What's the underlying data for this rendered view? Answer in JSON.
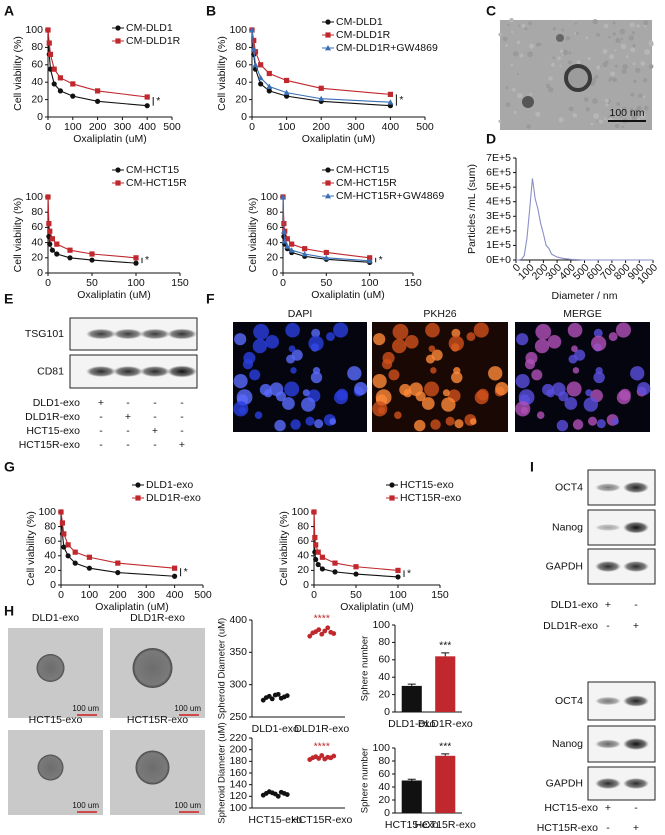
{
  "panel_labels": [
    "A",
    "B",
    "C",
    "D",
    "E",
    "F",
    "G",
    "H",
    "I"
  ],
  "panel_c": {
    "scale": "100 nm"
  },
  "panel_e": {
    "bands": [
      "TSG101",
      "CD81"
    ],
    "rows": [
      {
        "label": "DLD1-exo",
        "marks": [
          "+",
          "-",
          "-",
          "-"
        ]
      },
      {
        "label": "DLD1R-exo",
        "marks": [
          "-",
          "+",
          "-",
          "-"
        ]
      },
      {
        "label": "HCT15-exo",
        "marks": [
          "-",
          "-",
          "+",
          "-"
        ]
      },
      {
        "label": "HCT15R-exo",
        "marks": [
          "-",
          "-",
          "-",
          "+"
        ]
      }
    ]
  },
  "panel_f": {
    "channels": [
      "DAPI",
      "PKH26",
      "MERGE"
    ]
  },
  "panel_h": {
    "images": [
      {
        "label": "DLD1-exo",
        "scale": "100 um"
      },
      {
        "label": "DLD1R-exo",
        "scale": "100 um"
      },
      {
        "label": "HCT15-exo",
        "scale": "100 um"
      },
      {
        "label": "HCT15R-exo",
        "scale": "100 um"
      }
    ]
  },
  "panel_i": {
    "blots": [
      {
        "bands": [
          "OCT4",
          "Nanog",
          "GAPDH"
        ],
        "rows": [
          {
            "label": "DLD1-exo",
            "marks": [
              "+",
              "-"
            ]
          },
          {
            "label": "DLD1R-exo",
            "marks": [
              "-",
              "+"
            ]
          }
        ]
      },
      {
        "bands": [
          "OCT4",
          "Nanog",
          "GAPDH"
        ],
        "rows": [
          {
            "label": "HCT15-exo",
            "marks": [
              "+",
              "-"
            ]
          },
          {
            "label": "HCT15R-exo",
            "marks": [
              "-",
              "+"
            ]
          }
        ]
      }
    ]
  },
  "chart_data": [
    {
      "type": "line",
      "xlabel": "Oxaliplatin (uM)",
      "ylabel": "Cell viability (%)",
      "x": [
        0,
        5,
        10,
        25,
        50,
        100,
        200,
        400
      ],
      "xlim": [
        0,
        500
      ],
      "xticks": [
        0,
        100,
        200,
        300,
        400,
        500
      ],
      "ylim": [
        0,
        100
      ],
      "yticks": [
        0,
        20,
        40,
        60,
        80,
        100
      ],
      "legend": true,
      "annotation": "*",
      "series": [
        {
          "name": "CM-DLD1",
          "color": "#111111",
          "marker": "circle",
          "values": [
            100,
            72,
            55,
            38,
            30,
            24,
            18,
            13
          ]
        },
        {
          "name": "CM-DLD1R",
          "color": "#c0282d",
          "marker": "square",
          "values": [
            100,
            85,
            72,
            55,
            45,
            38,
            30,
            23
          ]
        }
      ]
    },
    {
      "type": "line",
      "xlabel": "Oxaliplatin (uM)",
      "ylabel": "Cell viability (%)",
      "x": [
        0,
        1,
        2,
        5,
        10,
        25,
        50,
        100
      ],
      "xlim": [
        0,
        150
      ],
      "xticks": [
        0,
        50,
        100,
        150
      ],
      "ylim": [
        0,
        100
      ],
      "yticks": [
        0,
        20,
        40,
        60,
        80,
        100
      ],
      "legend": true,
      "annotation": "*",
      "series": [
        {
          "name": "CM-HCT15",
          "color": "#111111",
          "marker": "circle",
          "values": [
            100,
            48,
            38,
            30,
            25,
            20,
            17,
            13
          ]
        },
        {
          "name": "CM-HCT15R",
          "color": "#c0282d",
          "marker": "square",
          "values": [
            100,
            65,
            55,
            45,
            38,
            30,
            25,
            20
          ]
        }
      ]
    },
    {
      "type": "line",
      "xlabel": "Oxaliplatin (uM)",
      "ylabel": "Cell viability (%)",
      "x": [
        0,
        5,
        10,
        25,
        50,
        100,
        200,
        400
      ],
      "xlim": [
        0,
        500
      ],
      "xticks": [
        0,
        100,
        200,
        300,
        400,
        500
      ],
      "ylim": [
        0,
        100
      ],
      "yticks": [
        0,
        20,
        40,
        60,
        80,
        100
      ],
      "legend": true,
      "annotation": "*",
      "series": [
        {
          "name": "CM-DLD1",
          "color": "#111111",
          "marker": "circle",
          "values": [
            100,
            72,
            55,
            38,
            30,
            24,
            18,
            13
          ]
        },
        {
          "name": "CM-DLD1R",
          "color": "#c0282d",
          "marker": "square",
          "values": [
            100,
            88,
            75,
            60,
            50,
            42,
            33,
            26
          ]
        },
        {
          "name": "CM-DLD1R+GW4869",
          "color": "#3a6fb5",
          "marker": "triangle",
          "values": [
            100,
            78,
            60,
            45,
            35,
            28,
            21,
            17
          ]
        }
      ]
    },
    {
      "type": "line",
      "xlabel": "Oxaliplatin (uM)",
      "ylabel": "Cell viability (%)",
      "x": [
        0,
        1,
        2,
        5,
        10,
        25,
        50,
        100
      ],
      "xlim": [
        0,
        150
      ],
      "xticks": [
        0,
        50,
        100,
        150
      ],
      "ylim": [
        0,
        100
      ],
      "yticks": [
        0,
        20,
        40,
        60,
        80,
        100
      ],
      "legend": true,
      "annotation": "*",
      "series": [
        {
          "name": "CM-HCT15",
          "color": "#111111",
          "marker": "circle",
          "values": [
            100,
            48,
            38,
            32,
            27,
            22,
            18,
            14
          ]
        },
        {
          "name": "CM-HCT15R",
          "color": "#c0282d",
          "marker": "square",
          "values": [
            100,
            65,
            55,
            45,
            38,
            32,
            27,
            20
          ]
        },
        {
          "name": "CM-HCT15R+GW4869",
          "color": "#3a6fb5",
          "marker": "triangle",
          "values": [
            100,
            55,
            42,
            35,
            30,
            25,
            20,
            16
          ]
        }
      ]
    },
    {
      "type": "line",
      "xlabel": "Diameter / nm",
      "ylabel": "Particles /mL (sum)",
      "x": [
        0,
        20,
        40,
        60,
        80,
        100,
        120,
        140,
        160,
        180,
        200,
        220,
        240,
        260,
        280,
        300,
        350,
        400,
        500,
        600,
        1000
      ],
      "xlim": [
        0,
        1000
      ],
      "xticks": [
        0,
        100,
        200,
        300,
        400,
        500,
        600,
        700,
        800,
        900,
        1000
      ],
      "ylim": [
        0,
        700000
      ],
      "yticks": [
        {
          "value": 0,
          "label": "0E+0"
        },
        {
          "value": 100000,
          "label": "1E+5"
        },
        {
          "value": 200000,
          "label": "2E+5"
        },
        {
          "value": 300000,
          "label": "3E+5"
        },
        {
          "value": 400000,
          "label": "4E+5"
        },
        {
          "value": 500000,
          "label": "5E+5"
        },
        {
          "value": 600000,
          "label": "6E+5"
        },
        {
          "value": 700000,
          "label": "7E+5"
        }
      ],
      "series": [
        {
          "color": "#8a8fc6",
          "values": [
            0,
            0,
            5000,
            30000,
            150000,
            350000,
            560000,
            420000,
            350000,
            250000,
            180000,
            100000,
            80000,
            40000,
            30000,
            20000,
            10000,
            5000,
            0,
            0,
            0
          ]
        }
      ]
    },
    {
      "type": "line",
      "xlabel": "Oxaliplatin (uM)",
      "ylabel": "Cell viability (%)",
      "x": [
        0,
        5,
        10,
        25,
        50,
        100,
        200,
        400
      ],
      "xlim": [
        0,
        500
      ],
      "xticks": [
        0,
        100,
        200,
        300,
        400,
        500
      ],
      "ylim": [
        0,
        100
      ],
      "yticks": [
        0,
        20,
        40,
        60,
        80,
        100
      ],
      "legend": true,
      "annotation": "*",
      "series": [
        {
          "name": "DLD1-exo",
          "color": "#111111",
          "marker": "circle",
          "values": [
            100,
            70,
            52,
            40,
            30,
            23,
            17,
            12
          ]
        },
        {
          "name": "DLD1R-exo",
          "color": "#c0282d",
          "marker": "square",
          "values": [
            100,
            85,
            70,
            55,
            45,
            38,
            30,
            23
          ]
        }
      ]
    },
    {
      "type": "line",
      "xlabel": "Oxaliplatin (uM)",
      "ylabel": "Cell viability (%)",
      "x": [
        0,
        1,
        2,
        5,
        10,
        25,
        50,
        100
      ],
      "xlim": [
        0,
        150
      ],
      "xticks": [
        0,
        50,
        100,
        150
      ],
      "ylim": [
        0,
        100
      ],
      "yticks": [
        0,
        20,
        40,
        60,
        80,
        100
      ],
      "legend": true,
      "annotation": "*",
      "series": [
        {
          "name": "HCT15-exo",
          "color": "#111111",
          "marker": "circle",
          "values": [
            100,
            45,
            35,
            28,
            22,
            18,
            15,
            11
          ]
        },
        {
          "name": "HCT15R-exo",
          "color": "#c0282d",
          "marker": "square",
          "values": [
            100,
            65,
            55,
            45,
            38,
            30,
            25,
            20
          ]
        }
      ]
    },
    {
      "type": "strip",
      "ylabel": "Spheroid Diameter (uM)",
      "categories": [
        "DLD1-exo",
        "DLD1R-exo"
      ],
      "colors": [
        "#111111",
        "#c0282d"
      ],
      "ylim": [
        250,
        400
      ],
      "yticks": [
        250,
        300,
        350,
        400
      ],
      "annotation": "****",
      "values": [
        [
          276,
          280,
          282,
          278,
          284,
          285,
          279,
          281,
          283
        ],
        [
          375,
          380,
          382,
          385,
          378,
          383,
          388,
          381,
          379
        ]
      ]
    },
    {
      "type": "bar",
      "ylabel": "Sphere number",
      "categories": [
        "DLD1-exo",
        "DLD1R-exo"
      ],
      "colors": [
        "#111111",
        "#c0282d"
      ],
      "ylim": [
        0,
        100
      ],
      "yticks": [
        0,
        20,
        40,
        60,
        80,
        100
      ],
      "annotation": "***",
      "values": [
        30,
        64
      ],
      "errors": [
        2,
        4
      ]
    },
    {
      "type": "strip",
      "ylabel": "Spheroid Diameter (uM)",
      "categories": [
        "HCT15-exo",
        "HCT15R-exo"
      ],
      "colors": [
        "#111111",
        "#c0282d"
      ],
      "ylim": [
        100,
        220
      ],
      "yticks": [
        100,
        120,
        140,
        160,
        180,
        200,
        220
      ],
      "annotation": "****",
      "values": [
        [
          122,
          125,
          128,
          126,
          124,
          120,
          127,
          125,
          123
        ],
        [
          183,
          186,
          188,
          185,
          190,
          184,
          187,
          186,
          189
        ]
      ]
    },
    {
      "type": "bar",
      "ylabel": "Sphere number",
      "categories": [
        "HCT15-exo",
        "HCT15R-exo"
      ],
      "colors": [
        "#111111",
        "#c0282d"
      ],
      "ylim": [
        0,
        100
      ],
      "yticks": [
        0,
        20,
        40,
        60,
        80,
        100
      ],
      "annotation": "***",
      "values": [
        50,
        88
      ],
      "errors": [
        2,
        3
      ]
    }
  ]
}
